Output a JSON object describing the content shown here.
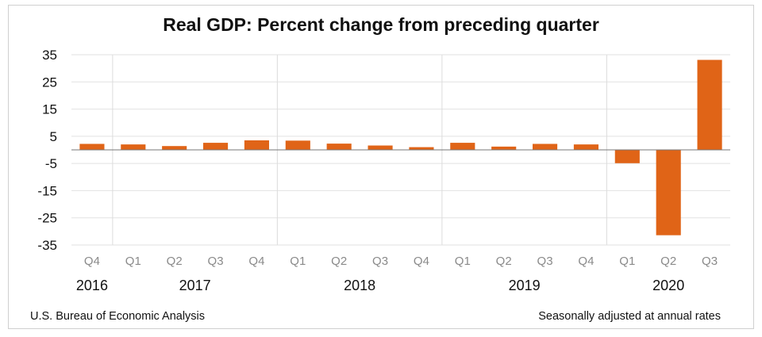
{
  "chart_data": {
    "type": "bar",
    "title": "Real GDP:  Percent change from preceding quarter",
    "categories": [
      "Q4",
      "Q1",
      "Q2",
      "Q3",
      "Q4",
      "Q1",
      "Q2",
      "Q3",
      "Q4",
      "Q1",
      "Q2",
      "Q3",
      "Q4",
      "Q1",
      "Q2",
      "Q3"
    ],
    "values": [
      2.2,
      2.0,
      1.4,
      2.6,
      3.5,
      3.4,
      2.3,
      1.6,
      1.0,
      2.6,
      1.2,
      2.2,
      2.0,
      -4.9,
      -31.4,
      33.1
    ],
    "years": [
      {
        "label": "2016",
        "start": 0,
        "end": 0
      },
      {
        "label": "2017",
        "start": 1,
        "end": 4
      },
      {
        "label": "2018",
        "start": 5,
        "end": 8
      },
      {
        "label": "2019",
        "start": 9,
        "end": 12
      },
      {
        "label": "2020",
        "start": 13,
        "end": 15
      }
    ],
    "year_separators_after": [
      0,
      4,
      8,
      12
    ],
    "yticks": [
      35,
      25,
      15,
      5,
      -5,
      -15,
      -25,
      -35
    ],
    "ylim": [
      -35,
      35
    ],
    "xlabel": "",
    "ylabel": "",
    "grid": true,
    "bar_color": "#E06417"
  },
  "footer": {
    "source": "U.S. Bureau of Economic Analysis",
    "note": "Seasonally adjusted at annual rates"
  }
}
